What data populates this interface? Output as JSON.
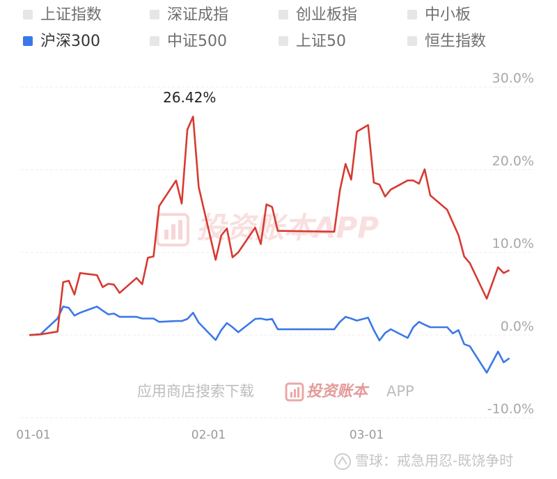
{
  "chart_data": {
    "type": "line",
    "legend": [
      {
        "name": "上证指数",
        "color": "#e6e6e6"
      },
      {
        "name": "深证成指",
        "color": "#e6e6e6"
      },
      {
        "name": "创业板指",
        "color": "#e6e6e6"
      },
      {
        "name": "中小板",
        "color": "#e6e6e6"
      },
      {
        "name": "沪深300",
        "color": "#3b78e7"
      },
      {
        "name": "中证500",
        "color": "#e6e6e6"
      },
      {
        "name": "上证50",
        "color": "#e6e6e6"
      },
      {
        "name": "恒生指数",
        "color": "#e6e6e6"
      }
    ],
    "x": [
      "01-01",
      "01-03",
      "01-06",
      "01-07",
      "01-08",
      "01-09",
      "01-10",
      "01-13",
      "01-14",
      "01-15",
      "01-16",
      "01-17",
      "01-20",
      "01-21",
      "01-22",
      "01-23",
      "01-24",
      "01-27",
      "01-28",
      "01-29",
      "01-30",
      "01-31",
      "02-03",
      "02-04",
      "02-05",
      "02-06",
      "02-07",
      "02-10",
      "02-11",
      "02-12",
      "02-13",
      "02-14",
      "02-24",
      "02-25",
      "02-26",
      "02-27",
      "02-28",
      "03-02",
      "03-03",
      "03-04",
      "03-05",
      "03-06",
      "03-09",
      "03-10",
      "03-11",
      "03-12",
      "03-13",
      "03-16",
      "03-17",
      "03-18",
      "03-19",
      "03-20",
      "03-23",
      "03-25",
      "03-26",
      "03-27"
    ],
    "series": [
      {
        "color": "#d63a31",
        "values": [
          0,
          0.08,
          0.42,
          6.4,
          6.57,
          4.9,
          7.5,
          7.25,
          5.8,
          6.2,
          6.1,
          5.1,
          6.9,
          6.15,
          9.35,
          9.5,
          15.6,
          18.7,
          15.9,
          24.85,
          26.42,
          17.9,
          9.1,
          12.05,
          12.9,
          9.4,
          10.0,
          13.0,
          11.0,
          15.8,
          15.5,
          12.6,
          12.5,
          17.5,
          20.7,
          18.8,
          24.6,
          25.4,
          18.45,
          18.2,
          16.75,
          17.6,
          18.7,
          18.7,
          18.3,
          20.05,
          16.9,
          15.15,
          13.6,
          12.1,
          9.5,
          8.7,
          4.4,
          8.2,
          7.5,
          7.85
        ],
        "value_labels": [
          null,
          null,
          null,
          null,
          null,
          null,
          null,
          null,
          null,
          null,
          null,
          null,
          null,
          null,
          null,
          null,
          null,
          null,
          null,
          null,
          "26.42%",
          null,
          null,
          null,
          null,
          null,
          null,
          null,
          null,
          null,
          null,
          null,
          null,
          null,
          null,
          null,
          null,
          null,
          null,
          null,
          null,
          null,
          null,
          null,
          null,
          null,
          null,
          null,
          null,
          null,
          null,
          null,
          null,
          null,
          null,
          null
        ]
      },
      {
        "color": "#3b78e7",
        "values": [
          0,
          0.1,
          2.0,
          3.45,
          3.3,
          2.35,
          2.7,
          3.45,
          2.95,
          2.5,
          2.6,
          2.2,
          2.2,
          2.0,
          2.0,
          2.0,
          1.6,
          1.7,
          1.7,
          1.95,
          2.7,
          1.5,
          -0.6,
          0.6,
          1.45,
          0.95,
          0.35,
          1.95,
          2.0,
          1.85,
          1.95,
          0.7,
          0.7,
          1.6,
          2.2,
          2.0,
          1.75,
          2.1,
          0.6,
          -0.65,
          0.25,
          0.7,
          -0.35,
          0.95,
          1.6,
          1.25,
          0.95,
          0.95,
          0.2,
          0.6,
          -1.1,
          -1.35,
          -4.55,
          -2.0,
          -3.3,
          -2.8
        ]
      }
    ],
    "xlim": [
      "01-01",
      "03-31"
    ],
    "xticks": [
      "01-01",
      "02-01",
      "03-01"
    ],
    "ylim": [
      -10,
      30
    ],
    "yticks": [
      {
        "value": 30,
        "label": "30.0%"
      },
      {
        "value": 20,
        "label": "20.0%"
      },
      {
        "value": 10,
        "label": "10.0%"
      },
      {
        "value": 0,
        "label": "0.0%"
      },
      {
        "value": -10,
        "label": "-10.0%"
      }
    ],
    "grid": true,
    "watermark": "投资账本APP",
    "download_note": {
      "prefix": "应用商店搜索下载",
      "brand": "投资账本",
      "suffix": "APP"
    },
    "footer": "雪球：戒急用忍-既饶争时"
  }
}
